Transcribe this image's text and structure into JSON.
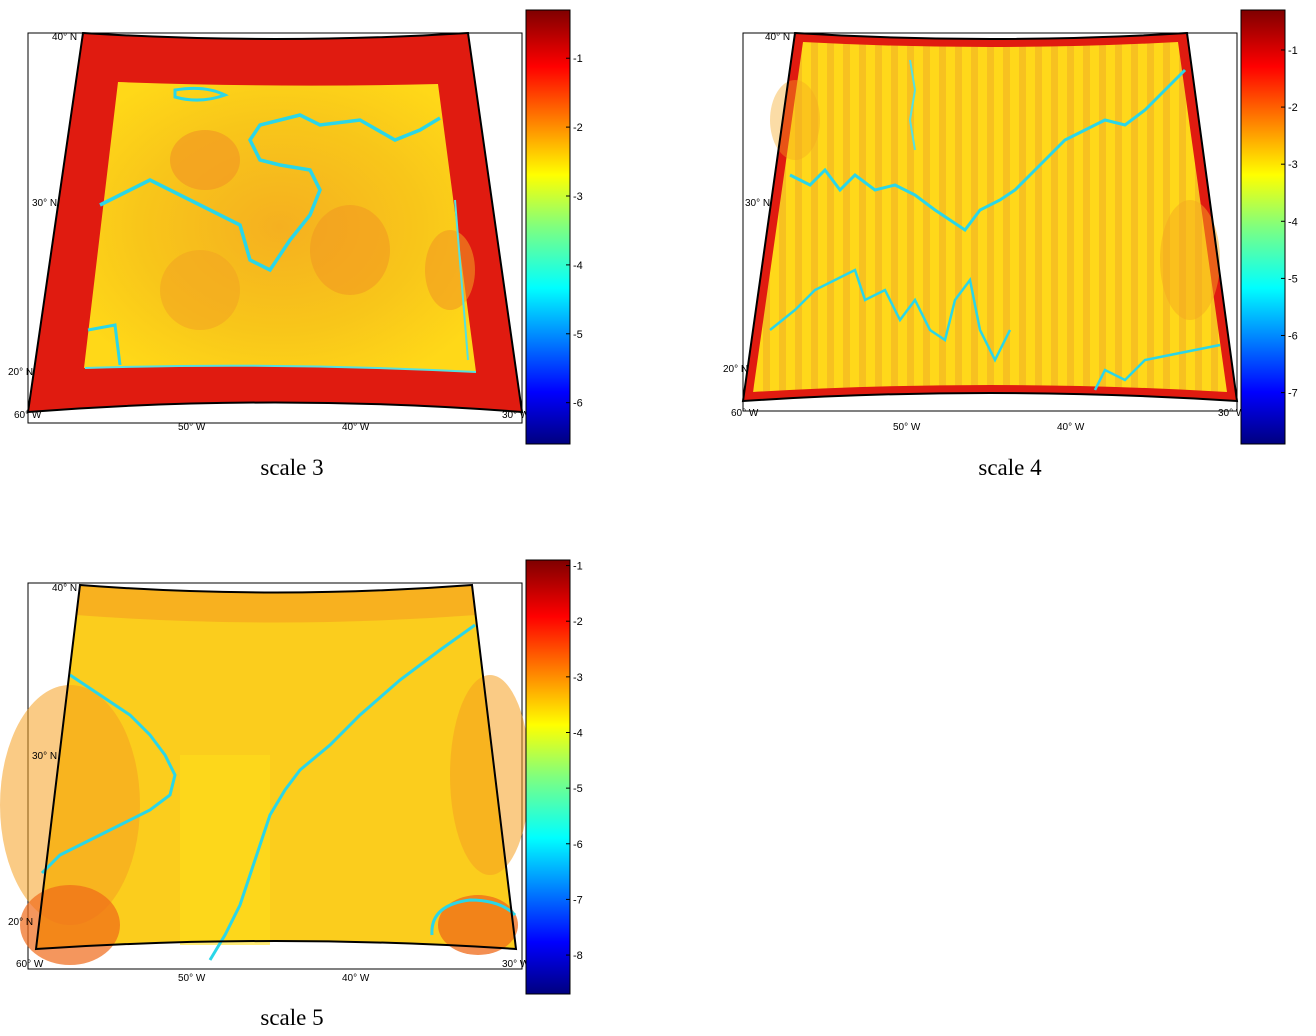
{
  "panels": [
    {
      "id": "scale3",
      "caption": "scale 3",
      "lat_labels": [
        "40° N",
        "30° N",
        "20° N"
      ],
      "lon_labels": [
        "60° W",
        "50° W",
        "40° W",
        "30° W"
      ],
      "colorbar": {
        "ticks": [
          -1,
          -2,
          -3,
          -4,
          -5,
          -6
        ],
        "min": -6.6,
        "max": -0.3
      }
    },
    {
      "id": "scale4",
      "caption": "scale 4",
      "lat_labels": [
        "40° N",
        "30° N",
        "20° N"
      ],
      "lon_labels": [
        "60° W",
        "50° W",
        "40° W",
        "30° W"
      ],
      "colorbar": {
        "ticks": [
          -1,
          -2,
          -3,
          -4,
          -5,
          -6,
          -7
        ],
        "min": -7.9,
        "max": -0.3
      }
    },
    {
      "id": "scale5",
      "caption": "scale 5",
      "lat_labels": [
        "40° N",
        "30° N",
        "20° N"
      ],
      "lon_labels": [
        "60° W",
        "50° W",
        "40° W",
        "30° W"
      ],
      "colorbar": {
        "ticks": [
          -1,
          -2,
          -3,
          -4,
          -5,
          -6,
          -7,
          -8
        ],
        "min": -8.7,
        "max": -0.9
      }
    }
  ],
  "colormap": "jet"
}
